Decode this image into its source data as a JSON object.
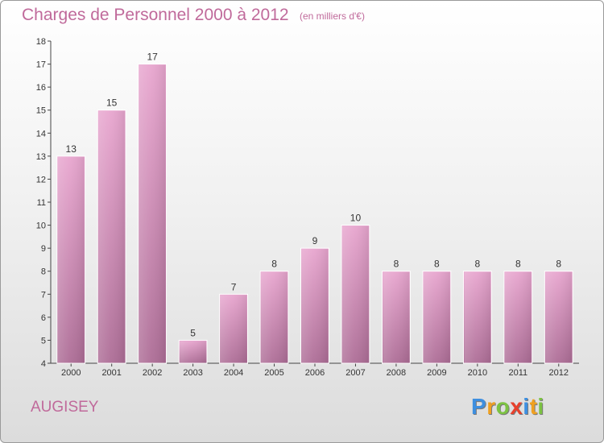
{
  "header": {
    "title": "Charges de Personnel 2000 à 2012",
    "subtitle": "(en milliers d'€)"
  },
  "footer": {
    "commune": "AUGISEY",
    "logo_letters": [
      {
        "ch": "P",
        "color": "#3e8fe0"
      },
      {
        "ch": "r",
        "color": "#f0a020"
      },
      {
        "ch": "o",
        "color": "#7cc242"
      },
      {
        "ch": "x",
        "color": "#e8402c"
      },
      {
        "ch": "i",
        "color": "#3e8fe0"
      },
      {
        "ch": "t",
        "color": "#f0a020"
      },
      {
        "ch": "i",
        "color": "#7cc242"
      }
    ]
  },
  "colors": {
    "accent": "#c06a9b",
    "bar_top": "#e8a6cf",
    "bar_bottom": "#ad6d96"
  },
  "chart_data": {
    "type": "bar",
    "title": "Charges de Personnel 2000 à 2012",
    "subtitle": "(en milliers d'€)",
    "categories": [
      "2000",
      "2001",
      "2002",
      "2003",
      "2004",
      "2005",
      "2006",
      "2007",
      "2008",
      "2009",
      "2010",
      "2011",
      "2012"
    ],
    "values": [
      13,
      15,
      17,
      5,
      7,
      8,
      9,
      10,
      8,
      8,
      8,
      8,
      8
    ],
    "ylim": [
      4,
      18
    ],
    "yticks": [
      4,
      5,
      6,
      7,
      8,
      9,
      10,
      11,
      12,
      13,
      14,
      15,
      16,
      17,
      18
    ],
    "grid": false,
    "data_labels": true
  }
}
